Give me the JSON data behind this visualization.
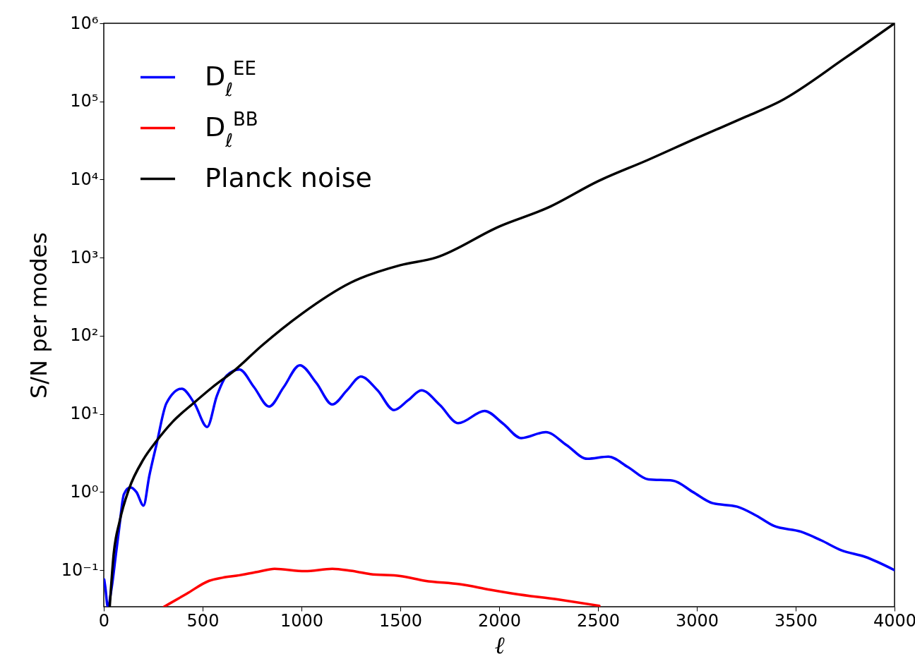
{
  "chart_data": {
    "type": "line",
    "xlabel": "ℓ",
    "ylabel": "S/N per modes",
    "log": "y",
    "grid": false,
    "legend": "top left",
    "marker": "none",
    "line_style": "solid",
    "xlim": [
      0,
      4000
    ],
    "xticks": [
      0,
      500,
      1000,
      1500,
      2000,
      2500,
      3000,
      3500,
      4000
    ],
    "ylim": [
      0.034,
      1000000
    ],
    "yticks": [
      {
        "value": 0.1,
        "label": "10⁻¹"
      },
      {
        "value": 1,
        "label": "10⁰"
      },
      {
        "value": 10,
        "label": "10¹"
      },
      {
        "value": 100,
        "label": "10²"
      },
      {
        "value": 1000,
        "label": "10³"
      },
      {
        "value": 10000,
        "label": "10⁴"
      },
      {
        "value": 100000,
        "label": "10⁵"
      },
      {
        "value": 1000000,
        "label": "10⁶"
      }
    ],
    "series": [
      {
        "name": "D$_{ℓ}$$^{EE}$",
        "color": "#0000ff",
        "x": [
          2,
          8,
          20,
          40,
          60,
          77,
          102,
          134,
          165,
          201,
          230,
          267,
          317,
          394,
          458,
          523,
          572,
          622,
          686,
          760,
          836,
          910,
          992,
          1075,
          1156,
          1230,
          1300,
          1385,
          1468,
          1540,
          1607,
          1700,
          1793,
          1927,
          2020,
          2112,
          2236,
          2340,
          2446,
          2553,
          2650,
          2755,
          2878,
          2980,
          3079,
          3204,
          3300,
          3388,
          3527,
          3630,
          3730,
          3851,
          4000
        ],
        "values": [
          0.076,
          0.06,
          0.034,
          0.06,
          0.15,
          0.33,
          0.94,
          1.15,
          1.0,
          0.67,
          1.6,
          4.1,
          13.7,
          21,
          13.7,
          6.8,
          17,
          31,
          37,
          22,
          12.4,
          22,
          42,
          25,
          13.2,
          20,
          30,
          20,
          11.2,
          15,
          20,
          13,
          7.6,
          10.9,
          7.5,
          4.9,
          5.85,
          4.0,
          2.66,
          2.83,
          2.1,
          1.45,
          1.4,
          1.0,
          0.72,
          0.65,
          0.5,
          0.37,
          0.31,
          0.24,
          0.18,
          0.148,
          0.1
        ]
      },
      {
        "name": "D$_{ℓ}$$^{BB}$",
        "color": "#ff0000",
        "x": [
          305,
          420,
          533,
          600,
          686,
          780,
          864,
          1017,
          1156,
          1250,
          1348,
          1500,
          1625,
          1800,
          1956,
          2073,
          2300,
          2507
        ],
        "values": [
          0.034,
          0.05,
          0.073,
          0.08,
          0.086,
          0.095,
          0.104,
          0.097,
          0.104,
          0.098,
          0.089,
          0.084,
          0.073,
          0.066,
          0.056,
          0.05,
          0.042,
          0.035
        ]
      },
      {
        "name": "Planck noise",
        "color": "#000000",
        "x": [
          30,
          50,
          80,
          128,
          200,
          267,
          350,
          458,
          550,
          661,
          800,
          1000,
          1250,
          1500,
          1680,
          2000,
          2250,
          2500,
          2750,
          3000,
          3250,
          3420,
          3750,
          4000
        ],
        "values": [
          0.034,
          0.16,
          0.42,
          1.1,
          2.6,
          4.5,
          8,
          14,
          22,
          36,
          75,
          190,
          480,
          800,
          1000,
          2500,
          4400,
          9500,
          17700,
          34000,
          64000,
          100000,
          360000,
          1000000
        ]
      }
    ]
  }
}
